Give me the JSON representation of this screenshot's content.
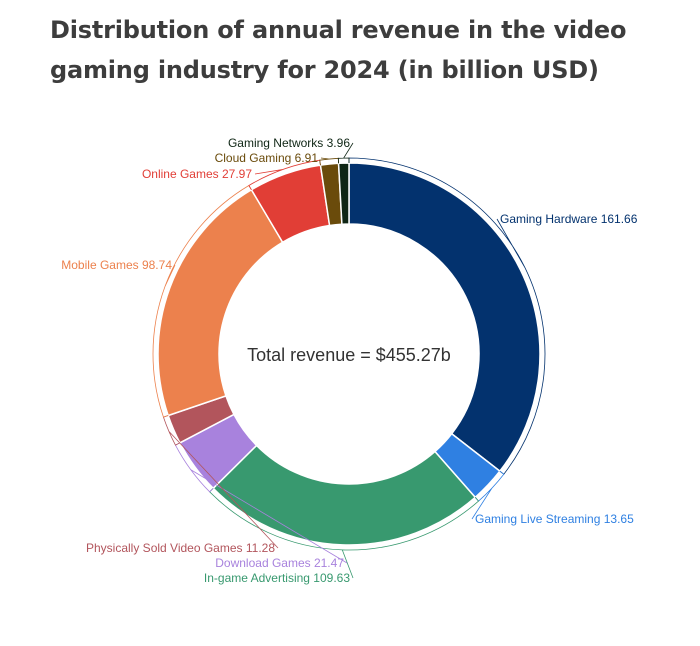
{
  "title": "Distribution of annual revenue in the video gaming industry for 2024 (in billion USD)",
  "center_label": "Total revenue = $455.27b",
  "chart_data": {
    "type": "pie",
    "style": "donut",
    "title": "Distribution of annual revenue in the video gaming industry for 2024 (in billion USD)",
    "total_label": "Total revenue = $455.27b",
    "slices": [
      {
        "name": "Gaming Hardware",
        "value": 161.66,
        "color": "#03326e",
        "label": "Gaming Hardware 161.66"
      },
      {
        "name": "Gaming Live Streaming",
        "value": 13.65,
        "color": "#2f80e2",
        "label": "Gaming Live Streaming 13.65"
      },
      {
        "name": "In-game Advertising",
        "value": 109.63,
        "color": "#38996f",
        "label": "In-game Advertising 109.63"
      },
      {
        "name": "Download Games",
        "value": 21.47,
        "color": "#a882dd",
        "label": "Download Games 21.47"
      },
      {
        "name": "Physically Sold Video Games",
        "value": 11.28,
        "color": "#b2555c",
        "label": "Physically Sold Video Games 11.28"
      },
      {
        "name": "Mobile Games",
        "value": 98.74,
        "color": "#ec814d",
        "label": "Mobile Games 98.74"
      },
      {
        "name": "Online Games",
        "value": 27.97,
        "color": "#e13e36",
        "label": "Online Games 27.97"
      },
      {
        "name": "Cloud Gaming",
        "value": 6.91,
        "color": "#6a4b0b",
        "label": "Cloud Gaming 6.91"
      },
      {
        "name": "Gaming Networks",
        "value": 3.96,
        "color": "#0f2615",
        "label": "Gaming Networks 3.96"
      }
    ]
  }
}
